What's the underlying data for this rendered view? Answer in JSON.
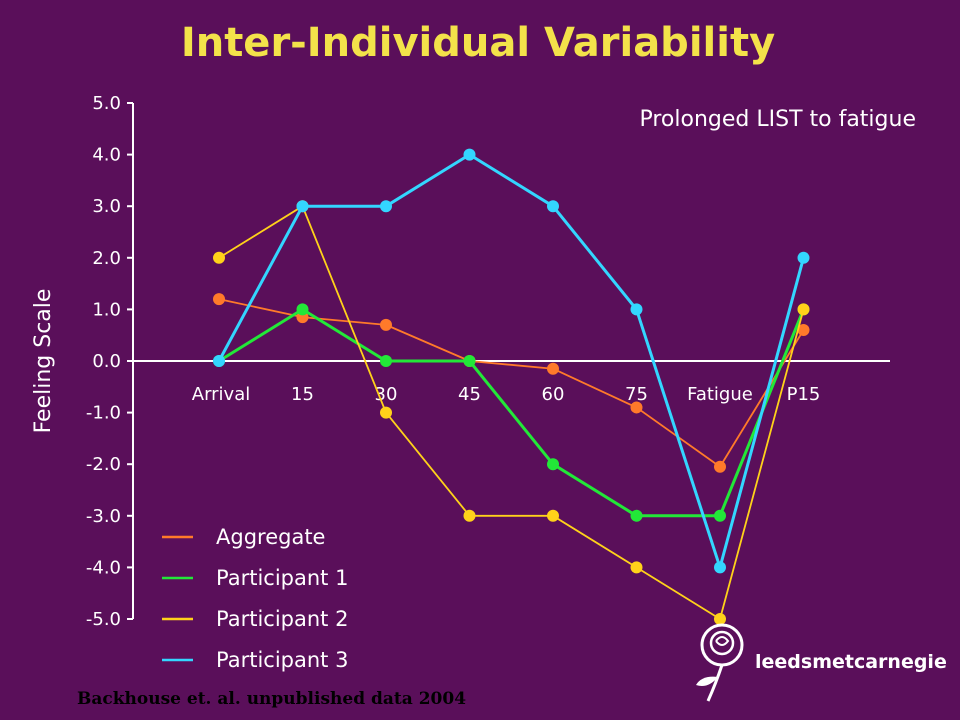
{
  "slide": {
    "credit": "Backhouse et. al. unpublished data 2004",
    "logo_text": "leedsmetcarnegie",
    "background": "#5a0f5a"
  },
  "chart_data": {
    "type": "line",
    "title": "Inter-Individual Variability",
    "subtitle": "Prolonged LIST to fatigue",
    "xlabel": "",
    "ylabel": "Feeling Scale",
    "categories": [
      "Arrival",
      "15",
      "30",
      "45",
      "60",
      "75",
      "Fatigue",
      "P15"
    ],
    "ylim": [
      -5,
      5
    ],
    "yticks": [
      "5.0",
      "4.0",
      "3.0",
      "2.0",
      "1.0",
      "0.0",
      "-1.0",
      "-2.0",
      "-3.0",
      "-4.0",
      "-5.0"
    ],
    "legend_position": "bottom-left",
    "grid": false,
    "series": [
      {
        "name": "Aggregate",
        "color": "#ff7a2a",
        "values": [
          1.2,
          0.85,
          0.7,
          0.0,
          -0.15,
          -0.9,
          -2.05,
          0.6
        ]
      },
      {
        "name": "Participant 1",
        "color": "#22e838",
        "values": [
          0,
          1,
          0,
          0,
          -2,
          -3,
          -3,
          1
        ]
      },
      {
        "name": "Participant 2",
        "color": "#ffd21a",
        "values": [
          2,
          3,
          -1,
          -3,
          -3,
          -4,
          -5,
          1
        ]
      },
      {
        "name": "Participant 3",
        "color": "#33d6ff",
        "values": [
          0,
          3,
          3,
          4,
          3,
          1,
          -4,
          2
        ]
      }
    ]
  }
}
